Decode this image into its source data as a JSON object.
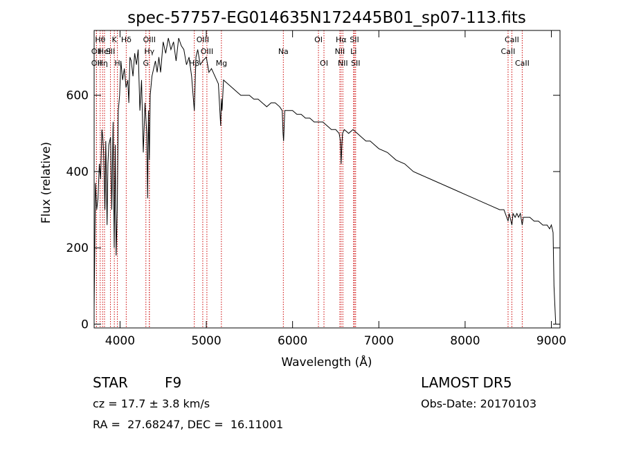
{
  "chart_data": {
    "type": "line",
    "title": "spec-57757-EG014635N172445B01_sp07-113.fits",
    "xlabel": "Wavelength (Å)",
    "ylabel": "Flux (relative)",
    "xlim": [
      3700,
      9100
    ],
    "ylim": [
      -10,
      770
    ],
    "x_ticks": [
      4000,
      5000,
      6000,
      7000,
      8000,
      9000
    ],
    "y_ticks": [
      0,
      200,
      400,
      600
    ],
    "grid": false,
    "legend": "none",
    "line_color": "#000000",
    "marker_color": "#cc0000",
    "series": [
      {
        "x": [
          3700,
          3715,
          3730,
          3745,
          3760,
          3775,
          3790,
          3800,
          3810,
          3825,
          3835,
          3850,
          3860,
          3870,
          3890,
          3905,
          3920,
          3933,
          3945,
          3955,
          3968,
          3980,
          3995,
          4010,
          4030,
          4050,
          4070,
          4090,
          4102,
          4115,
          4130,
          4150,
          4170,
          4190,
          4210,
          4230,
          4250,
          4270,
          4290,
          4310,
          4320,
          4330,
          4340,
          4350,
          4370,
          4390,
          4410,
          4430,
          4450,
          4470,
          4500,
          4530,
          4560,
          4590,
          4620,
          4650,
          4680,
          4710,
          4740,
          4770,
          4800,
          4830,
          4861,
          4880,
          4900,
          4930,
          4960,
          5000,
          5030,
          5060,
          5100,
          5140,
          5167,
          5175,
          5183,
          5200,
          5250,
          5300,
          5350,
          5400,
          5450,
          5500,
          5550,
          5600,
          5650,
          5700,
          5750,
          5800,
          5850,
          5880,
          5890,
          5896,
          5910,
          5950,
          6000,
          6050,
          6100,
          6150,
          6200,
          6250,
          6300,
          6350,
          6400,
          6450,
          6500,
          6540,
          6555,
          6563,
          6572,
          6580,
          6600,
          6650,
          6700,
          6750,
          6800,
          6850,
          6900,
          6950,
          7000,
          7100,
          7200,
          7300,
          7400,
          7500,
          7600,
          7700,
          7800,
          7900,
          8000,
          8100,
          8200,
          8300,
          8400,
          8450,
          8498,
          8510,
          8542,
          8555,
          8580,
          8600,
          8620,
          8640,
          8662,
          8675,
          8700,
          8750,
          8800,
          8850,
          8900,
          8950,
          8980,
          9000,
          9010,
          9020,
          9030,
          9050
        ],
        "y": [
          40,
          370,
          300,
          330,
          420,
          380,
          510,
          490,
          450,
          300,
          480,
          260,
          420,
          470,
          490,
          300,
          530,
          200,
          470,
          180,
          300,
          560,
          600,
          690,
          640,
          670,
          620,
          640,
          580,
          700,
          690,
          650,
          710,
          680,
          720,
          560,
          640,
          450,
          580,
          500,
          330,
          560,
          430,
          600,
          650,
          670,
          690,
          660,
          700,
          660,
          740,
          710,
          750,
          720,
          740,
          690,
          750,
          730,
          720,
          680,
          700,
          650,
          560,
          700,
          720,
          680,
          690,
          700,
          660,
          670,
          650,
          630,
          520,
          590,
          560,
          640,
          630,
          620,
          610,
          600,
          600,
          600,
          590,
          590,
          580,
          570,
          580,
          580,
          570,
          560,
          500,
          480,
          560,
          560,
          560,
          550,
          550,
          540,
          540,
          530,
          530,
          530,
          520,
          510,
          510,
          500,
          480,
          420,
          470,
          500,
          510,
          500,
          510,
          500,
          490,
          480,
          480,
          470,
          460,
          450,
          430,
          420,
          400,
          390,
          380,
          370,
          360,
          350,
          340,
          330,
          320,
          310,
          300,
          300,
          270,
          290,
          260,
          290,
          280,
          290,
          280,
          290,
          260,
          280,
          280,
          280,
          270,
          270,
          260,
          260,
          250,
          260,
          250,
          240,
          100,
          0
        ]
      }
    ],
    "lines": [
      {
        "w": 3727,
        "label": "OII",
        "row": 2
      },
      {
        "w": 3727,
        "label": "OII",
        "row": 3
      },
      {
        "w": 3770,
        "label": "Hθ",
        "row": 1
      },
      {
        "w": 3798,
        "label": "Hη",
        "row": 3
      },
      {
        "w": 3820,
        "label": "HeI",
        "row": 2
      },
      {
        "w": 3889,
        "label": "SII",
        "row": 2
      },
      {
        "w": 3934,
        "label": "K",
        "row": 1
      },
      {
        "w": 3969,
        "label": "H",
        "row": 3
      },
      {
        "w": 4072,
        "label": "Hδ",
        "row": 1
      },
      {
        "w": 4300,
        "label": "G",
        "row": 3
      },
      {
        "w": 4340,
        "label": "OIII",
        "row": 1
      },
      {
        "w": 4340,
        "label": "Hγ",
        "row": 2
      },
      {
        "w": 4861,
        "label": "Hβ",
        "row": 3
      },
      {
        "w": 4959,
        "label": "OIII",
        "row": 1
      },
      {
        "w": 5007,
        "label": "OIII",
        "row": 2
      },
      {
        "w": 5175,
        "label": "Mg",
        "row": 3
      },
      {
        "w": 5893,
        "label": "Na",
        "row": 2
      },
      {
        "w": 6300,
        "label": "OI",
        "row": 1
      },
      {
        "w": 6364,
        "label": "OI",
        "row": 3
      },
      {
        "w": 6548,
        "label": "NII",
        "row": 2
      },
      {
        "w": 6563,
        "label": "Hα",
        "row": 1
      },
      {
        "w": 6583,
        "label": "NII",
        "row": 3
      },
      {
        "w": 6707,
        "label": "Li",
        "row": 2
      },
      {
        "w": 6717,
        "label": "SII",
        "row": 1
      },
      {
        "w": 6731,
        "label": "SII",
        "row": 3
      },
      {
        "w": 8498,
        "label": "CaII",
        "row": 2
      },
      {
        "w": 8542,
        "label": "CaII",
        "row": 1
      },
      {
        "w": 8662,
        "label": "CaII",
        "row": 3
      }
    ]
  },
  "info": {
    "class": "STAR",
    "subclass": "F9",
    "survey": "LAMOST DR5",
    "cz": "cz = 17.7 ± 3.8 km/s",
    "obs_date": "Obs-Date: 20170103",
    "coords": "RA =  27.68247, DEC =  16.11001"
  }
}
